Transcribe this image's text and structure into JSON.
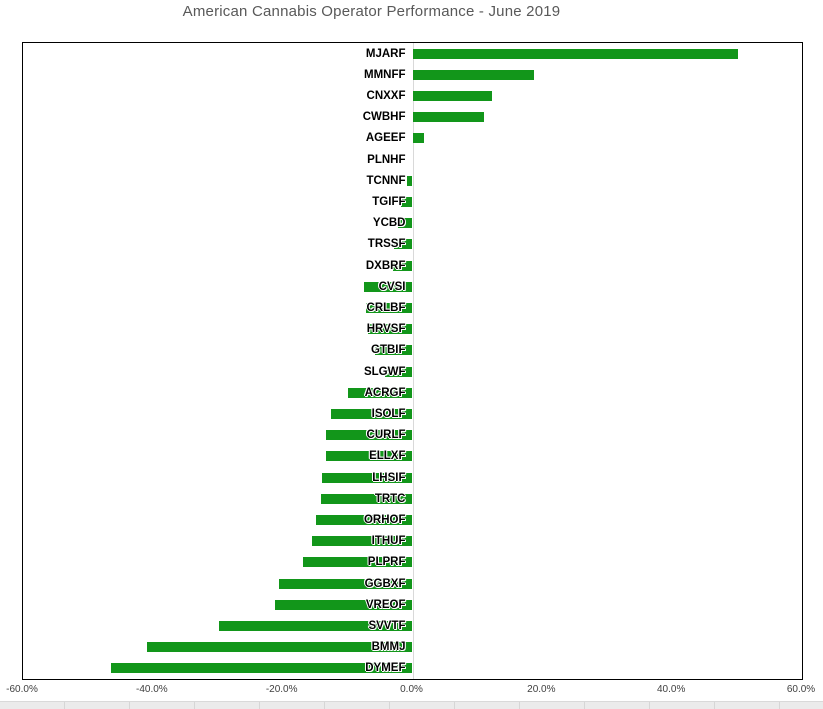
{
  "chart_data": {
    "type": "bar",
    "orientation": "horizontal",
    "title": "American Cannabis Operator Performance - June 2019",
    "categories": [
      "MJARF",
      "MMNFF",
      "CNXXF",
      "CWBHF",
      "AGEEF",
      "PLNHF",
      "TCNNF",
      "TGIFF",
      "YCBD",
      "TRSSF",
      "DXBRF",
      "CVSI",
      "CRLBF",
      "HRVSF",
      "GTBIF",
      "SLGWF",
      "ACRGF",
      "ISOLF",
      "CURLF",
      "ELLXF",
      "LHSIF",
      "TRTC",
      "ORHOF",
      "ITHUF",
      "PLPRF",
      "GGBXF",
      "VREOF",
      "SVVTF",
      "BMMJ",
      "DYMEF"
    ],
    "values": [
      50.1,
      18.7,
      12.3,
      11.0,
      1.8,
      0.0,
      -0.9,
      -1.7,
      -2.3,
      -2.8,
      -3.0,
      -7.4,
      -7.2,
      -6.8,
      -5.8,
      -4.2,
      -10.0,
      -12.6,
      -13.3,
      -13.4,
      -14.0,
      -14.1,
      -14.8,
      -15.5,
      -16.8,
      -20.5,
      -21.2,
      -29.8,
      -40.9,
      -46.4
    ],
    "value_format": "percent",
    "xlabel": "",
    "ylabel": "",
    "xlim": [
      -60,
      60
    ],
    "x_tick_values": [
      -60,
      -40,
      -20,
      0,
      20,
      40,
      60
    ],
    "x_tick_labels": [
      "-60.0%",
      "-40.0%",
      "-20.0%",
      "0.0%",
      "20.0%",
      "40.0%",
      "60.0%"
    ],
    "legend": "none",
    "grid": false,
    "bar_color": "#12961a",
    "title_color": "#595959",
    "plot_border_color": "#000000",
    "zero_axis_color": "#d9d9d9"
  }
}
